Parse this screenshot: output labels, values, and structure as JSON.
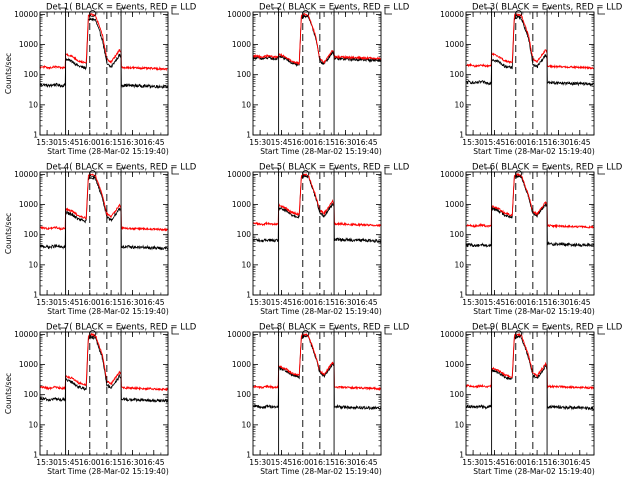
{
  "figure": {
    "background": "#ffffff",
    "axis_color": "#000000"
  },
  "chart_data": {
    "type": "line",
    "ylog": true,
    "ylim": [
      1,
      12000
    ],
    "xlim": [
      "15:25",
      "16:55"
    ],
    "x_ticks": [
      "15:30",
      "15:45",
      "16:00",
      "16:15",
      "16:30",
      "16:45"
    ],
    "y_ticks": [
      "1",
      "10",
      "100",
      "1000",
      "10000"
    ],
    "xlabel": "Start Time (28-Mar-02 15:19:40)",
    "ylabel": "Counts/sec",
    "series_colors": {
      "events": "#000000",
      "lld": "#ff0000"
    },
    "markers": {
      "solid_vertical": [
        "15:43",
        "16:22"
      ],
      "dashed_vertical": [
        "16:00",
        "16:12"
      ],
      "bracket_top": [
        "15:43",
        "16:22"
      ],
      "circle_time": "16:02"
    },
    "panels": [
      {
        "title": "Det 1(  BLACK = Events, RED = LLD",
        "ylabel": "Counts/sec",
        "events": {
          "pre": 45,
          "mid": 300,
          "peak": 7000,
          "post": 45
        },
        "lld": {
          "pre": 175,
          "mid": 440,
          "peak": 10000,
          "post": 175
        }
      },
      {
        "title": "Det 2(  BLACK = Events, RED = LLD",
        "ylabel": "",
        "events": {
          "pre": 350,
          "mid": 380,
          "peak": 9000,
          "post": 340
        },
        "lld": {
          "pre": 400,
          "mid": 430,
          "peak": 10000,
          "post": 390
        }
      },
      {
        "title": "Det 3(  BLACK = Events, RED = LLD",
        "ylabel": "",
        "events": {
          "pre": 55,
          "mid": 300,
          "peak": 8000,
          "post": 55
        },
        "lld": {
          "pre": 200,
          "mid": 450,
          "peak": 10000,
          "post": 190
        }
      },
      {
        "title": "Det 4(  BLACK = Events, RED = LLD",
        "ylabel": "Counts/sec",
        "events": {
          "pre": 40,
          "mid": 500,
          "peak": 8000,
          "post": 40
        },
        "lld": {
          "pre": 165,
          "mid": 650,
          "peak": 10000,
          "post": 165
        }
      },
      {
        "title": "Det 5(  BLACK = Events, RED = LLD",
        "ylabel": "",
        "events": {
          "pre": 65,
          "mid": 700,
          "peak": 9000,
          "post": 70
        },
        "lld": {
          "pre": 230,
          "mid": 850,
          "peak": 10000,
          "post": 230
        }
      },
      {
        "title": "Det 6(  BLACK = Events, RED = LLD",
        "ylabel": "",
        "events": {
          "pre": 45,
          "mid": 700,
          "peak": 9000,
          "post": 50
        },
        "lld": {
          "pre": 200,
          "mid": 800,
          "peak": 10000,
          "post": 200
        }
      },
      {
        "title": "Det 7(  BLACK = Events, RED = LLD",
        "ylabel": "Counts/sec",
        "events": {
          "pre": 70,
          "mid": 280,
          "peak": 8000,
          "post": 70
        },
        "lld": {
          "pre": 170,
          "mid": 380,
          "peak": 10000,
          "post": 170
        }
      },
      {
        "title": "Det 8(  BLACK = Events, RED = LLD",
        "ylabel": "",
        "events": {
          "pre": 40,
          "mid": 700,
          "peak": 9000,
          "post": 40
        },
        "lld": {
          "pre": 180,
          "mid": 800,
          "peak": 10000,
          "post": 180
        }
      },
      {
        "title": "Det 9(  BLACK = Events, RED = LLD",
        "ylabel": "",
        "events": {
          "pre": 40,
          "mid": 600,
          "peak": 8500,
          "post": 40
        },
        "lld": {
          "pre": 190,
          "mid": 700,
          "peak": 10000,
          "post": 190
        }
      }
    ]
  }
}
